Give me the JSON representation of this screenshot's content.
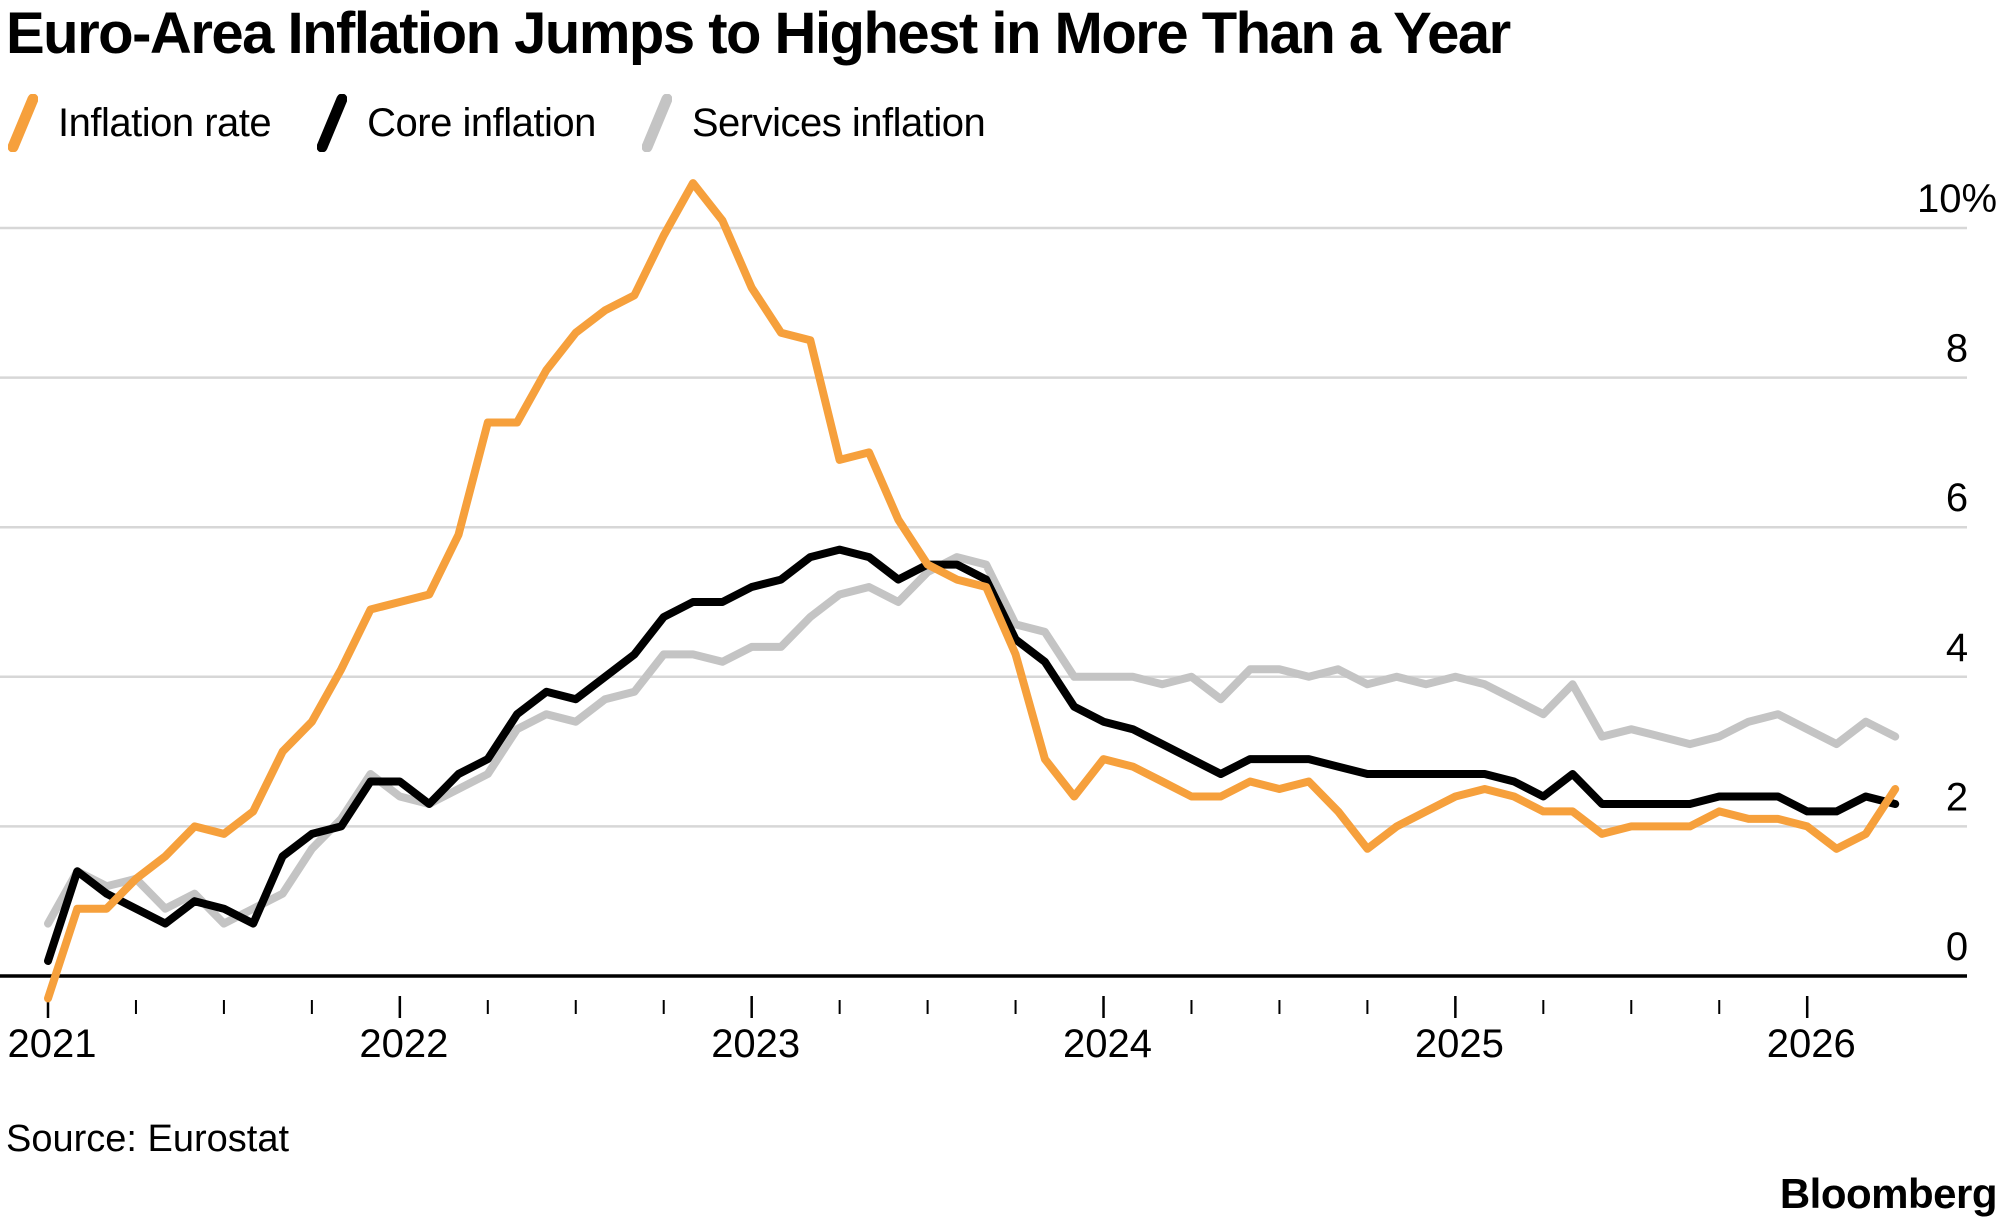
{
  "title": "Euro-Area Inflation Jumps to Highest in More Than a Year",
  "source": "Source: Eurostat",
  "brand": "Bloomberg",
  "colors": {
    "inflation_rate": "#F6A03C",
    "core_inflation": "#000000",
    "services_inflation": "#C4C4C4",
    "gridline": "#D7D7D7",
    "axis": "#000000",
    "background": "#FFFFFF",
    "text": "#000000"
  },
  "legend": {
    "items": [
      {
        "label": "Inflation rate",
        "color": "#F6A03C",
        "icon": "slash-swatch"
      },
      {
        "label": "Core inflation",
        "color": "#000000",
        "icon": "slash-swatch"
      },
      {
        "label": "Services inflation",
        "color": "#C4C4C4",
        "icon": "slash-swatch"
      }
    ]
  },
  "chart_data": {
    "type": "line",
    "title": "Euro-Area Inflation Jumps to Highest in More Than a Year",
    "xlabel": "",
    "ylabel": "",
    "unit": "%",
    "ylim": [
      -0.5,
      10.6
    ],
    "grid": "horizontal",
    "legend_position": "top-left",
    "months": [
      "2020-12",
      "2021-01",
      "2021-02",
      "2021-03",
      "2021-04",
      "2021-05",
      "2021-06",
      "2021-07",
      "2021-08",
      "2021-09",
      "2021-10",
      "2021-11",
      "2021-12",
      "2022-01",
      "2022-02",
      "2022-03",
      "2022-04",
      "2022-05",
      "2022-06",
      "2022-07",
      "2022-08",
      "2022-09",
      "2022-10",
      "2022-11",
      "2022-12",
      "2023-01",
      "2023-02",
      "2023-03",
      "2023-04",
      "2023-05",
      "2023-06",
      "2023-07",
      "2023-08",
      "2023-09",
      "2023-10",
      "2023-11",
      "2023-12",
      "2024-01",
      "2024-02",
      "2024-03",
      "2024-04",
      "2024-05",
      "2024-06",
      "2024-07",
      "2024-08",
      "2024-09",
      "2024-10",
      "2024-11",
      "2024-12",
      "2025-01",
      "2025-02",
      "2025-03",
      "2025-04",
      "2025-05",
      "2025-06",
      "2025-07",
      "2025-08",
      "2025-09",
      "2025-10",
      "2025-11",
      "2025-12",
      "2026-01",
      "2026-02",
      "2026-03"
    ],
    "series": [
      {
        "name": "Inflation rate",
        "color": "#F6A03C",
        "values": [
          -0.3,
          0.9,
          0.9,
          1.3,
          1.6,
          2.0,
          1.9,
          2.2,
          3.0,
          3.4,
          4.1,
          4.9,
          5.0,
          5.1,
          5.9,
          7.4,
          7.4,
          8.1,
          8.6,
          8.9,
          9.1,
          9.9,
          10.6,
          10.1,
          9.2,
          8.6,
          8.5,
          6.9,
          7.0,
          6.1,
          5.5,
          5.3,
          5.2,
          4.3,
          2.9,
          2.4,
          2.9,
          2.8,
          2.6,
          2.4,
          2.4,
          2.6,
          2.5,
          2.6,
          2.2,
          1.7,
          2.0,
          2.2,
          2.4,
          2.5,
          2.4,
          2.2,
          2.2,
          1.9,
          2.0,
          2.0,
          2.0,
          2.2,
          2.1,
          2.1,
          2.0,
          1.7,
          1.9,
          2.5
        ]
      },
      {
        "name": "Core inflation",
        "color": "#000000",
        "values": [
          0.2,
          1.4,
          1.1,
          0.9,
          0.7,
          1.0,
          0.9,
          0.7,
          1.6,
          1.9,
          2.0,
          2.6,
          2.6,
          2.3,
          2.7,
          2.9,
          3.5,
          3.8,
          3.7,
          4.0,
          4.3,
          4.8,
          5.0,
          5.0,
          5.2,
          5.3,
          5.6,
          5.7,
          5.6,
          5.3,
          5.5,
          5.5,
          5.3,
          4.5,
          4.2,
          3.6,
          3.4,
          3.3,
          3.1,
          2.9,
          2.7,
          2.9,
          2.9,
          2.9,
          2.8,
          2.7,
          2.7,
          2.7,
          2.7,
          2.7,
          2.6,
          2.4,
          2.7,
          2.3,
          2.3,
          2.3,
          2.3,
          2.4,
          2.4,
          2.4,
          2.2,
          2.2,
          2.4,
          2.3
        ]
      },
      {
        "name": "Services inflation",
        "color": "#C4C4C4",
        "values": [
          0.7,
          1.4,
          1.2,
          1.3,
          0.9,
          1.1,
          0.7,
          0.9,
          1.1,
          1.7,
          2.1,
          2.7,
          2.4,
          2.3,
          2.5,
          2.7,
          3.3,
          3.5,
          3.4,
          3.7,
          3.8,
          4.3,
          4.3,
          4.2,
          4.4,
          4.4,
          4.8,
          5.1,
          5.2,
          5.0,
          5.4,
          5.6,
          5.5,
          4.7,
          4.6,
          4.0,
          4.0,
          4.0,
          3.9,
          4.0,
          3.7,
          4.1,
          4.1,
          4.0,
          4.1,
          3.9,
          4.0,
          3.9,
          4.0,
          3.9,
          3.7,
          3.5,
          3.9,
          3.2,
          3.3,
          3.2,
          3.1,
          3.2,
          3.4,
          3.5,
          3.3,
          3.1,
          3.4,
          3.2
        ]
      }
    ],
    "y_axis": {
      "gridline_values": [
        2,
        4,
        6,
        8,
        10
      ],
      "tick_labels": [
        {
          "value": 0,
          "label": "0"
        },
        {
          "value": 2,
          "label": "2"
        },
        {
          "value": 4,
          "label": "4"
        },
        {
          "value": 6,
          "label": "6"
        },
        {
          "value": 8,
          "label": "8"
        },
        {
          "value": 10,
          "label": "10%"
        }
      ]
    },
    "x_axis": {
      "year_ticks": [
        {
          "label": "2021",
          "index": 0
        },
        {
          "label": "2022",
          "index": 12
        },
        {
          "label": "2023",
          "index": 24
        },
        {
          "label": "2024",
          "index": 36
        },
        {
          "label": "2025",
          "index": 48
        },
        {
          "label": "2026",
          "index": 60
        }
      ],
      "minor_tick_indices": [
        3,
        6,
        9,
        15,
        18,
        21,
        27,
        30,
        33,
        39,
        42,
        45,
        51,
        54,
        57
      ]
    }
  }
}
